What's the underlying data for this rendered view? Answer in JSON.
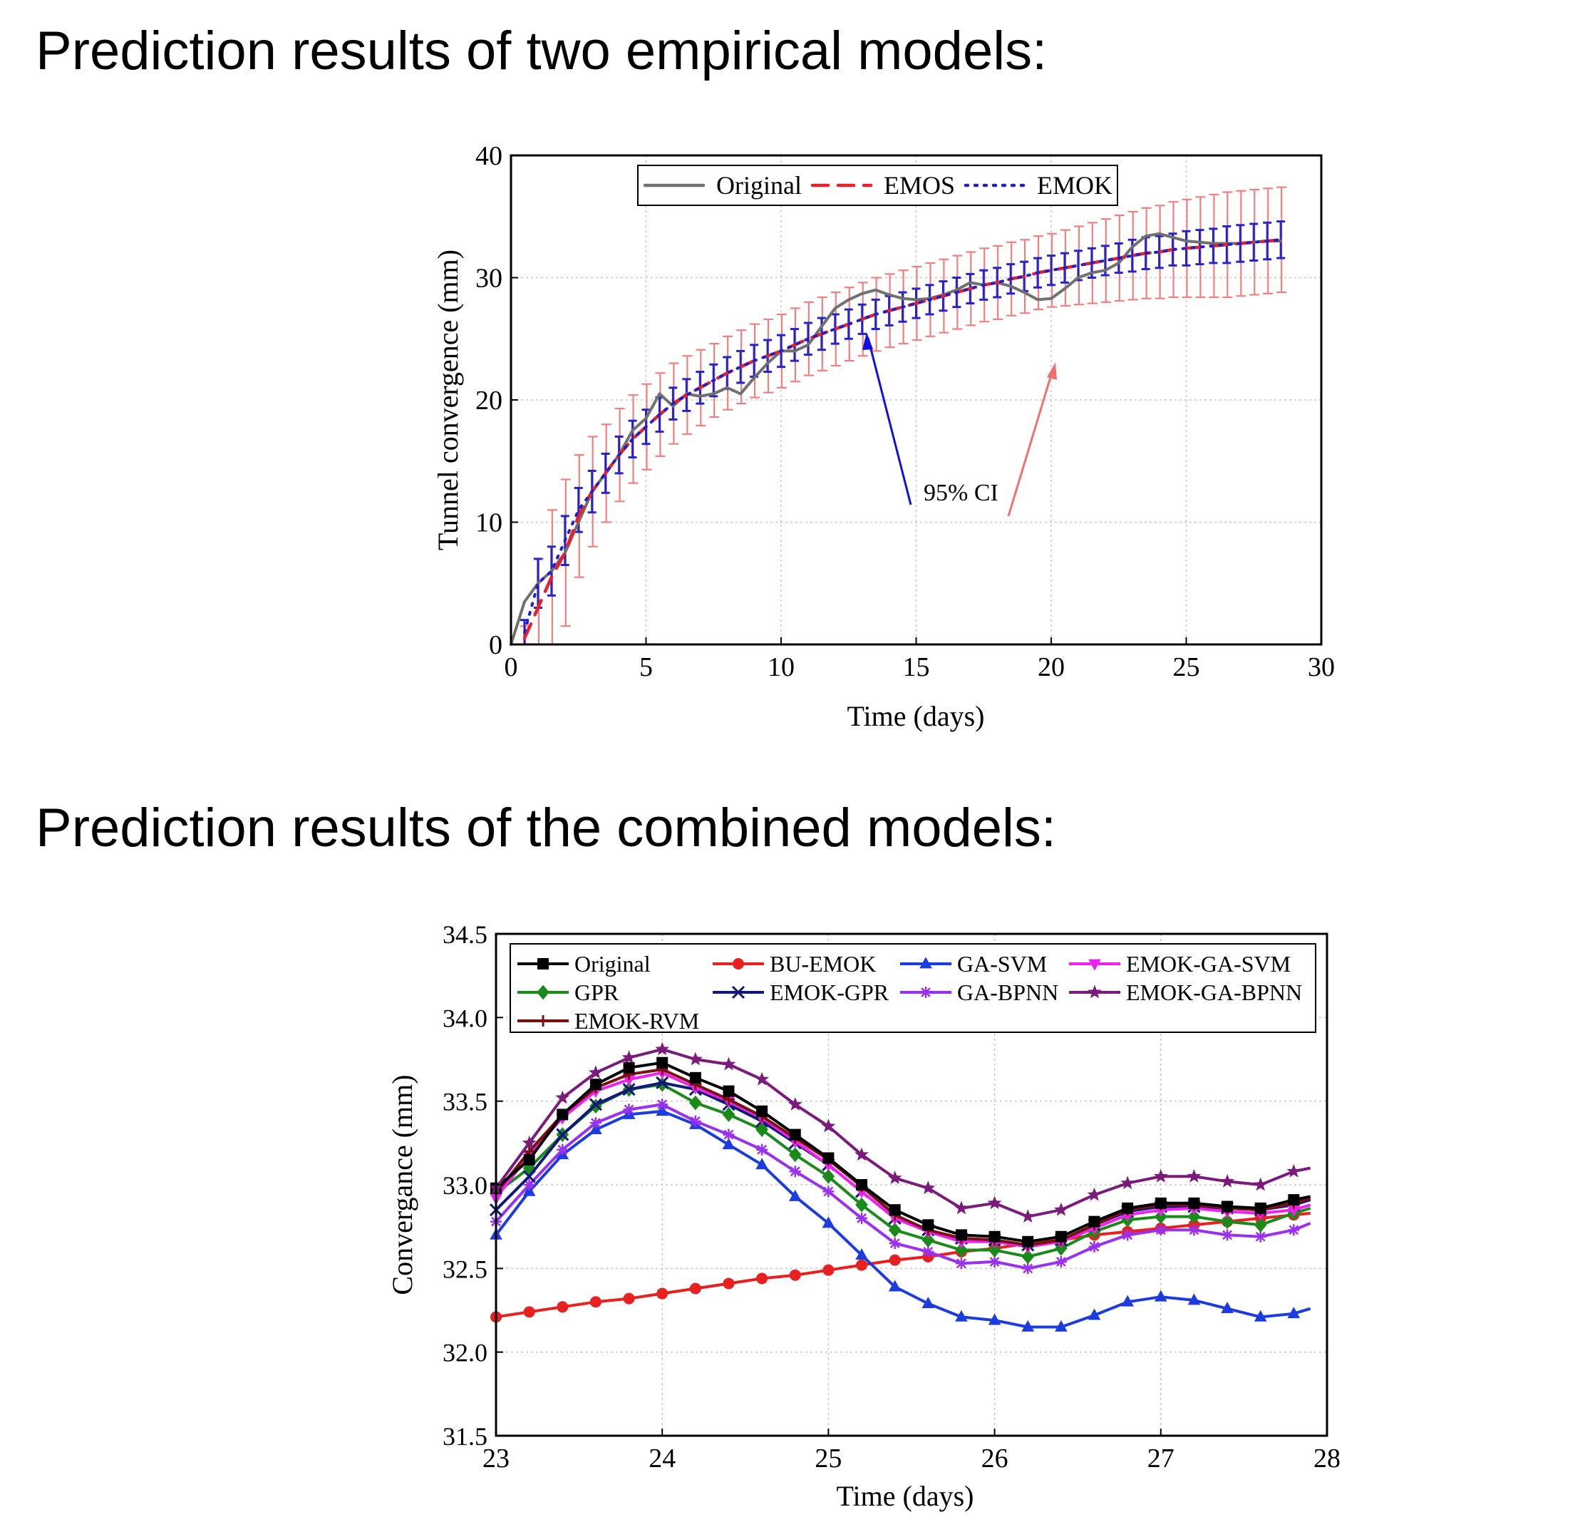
{
  "headings": {
    "top": "Prediction results of two empirical models:",
    "bottom": "Prediction results of the combined models:"
  },
  "chart_data": [
    {
      "type": "line",
      "xlabel": "Time (days)",
      "ylabel": "Tunnel convergence (mm)",
      "xlim": [
        0,
        30
      ],
      "ylim": [
        0,
        40
      ],
      "xticks": [
        0,
        5,
        10,
        15,
        20,
        25,
        30
      ],
      "yticks": [
        0,
        10,
        20,
        30,
        40
      ],
      "grid": true,
      "legend_position": "top-center",
      "annotation": "95% CI",
      "series": [
        {
          "name": "Original",
          "color": "#707070",
          "style": "solid",
          "x": [
            0,
            0.5,
            1,
            1.5,
            2,
            2.5,
            3,
            3.5,
            4,
            4.5,
            5,
            5.5,
            6,
            6.5,
            7,
            7.5,
            8,
            8.5,
            9,
            9.5,
            10,
            10.5,
            11,
            11.5,
            12,
            12.5,
            13,
            13.5,
            14,
            14.5,
            15,
            15.5,
            16,
            16.5,
            17,
            17.5,
            18,
            18.5,
            19,
            19.5,
            20,
            20.5,
            21,
            21.5,
            22,
            22.5,
            23,
            23.5,
            24,
            24.5,
            25,
            25.5,
            26,
            26.5,
            27,
            27.5,
            28,
            28.5
          ],
          "values": [
            0,
            3.5,
            5,
            6,
            7.5,
            10,
            12.5,
            14,
            15.5,
            17.5,
            18.5,
            20.5,
            19.5,
            20.5,
            20.3,
            20.5,
            21,
            20.5,
            21.8,
            23,
            24,
            24,
            24.5,
            26,
            27.5,
            28.2,
            28.7,
            29,
            28.6,
            28.3,
            28.2,
            28.3,
            28.6,
            29,
            29.6,
            29.4,
            29.6,
            29.3,
            28.8,
            28.2,
            28.3,
            29.1,
            30,
            30.4,
            30.6,
            31.2,
            32.5,
            33.4,
            33.6,
            33.3,
            33,
            32.9,
            32.8,
            32.8,
            32.8,
            32.9,
            33,
            33
          ]
        },
        {
          "name": "EMOS",
          "color": "#e8202a",
          "style": "dashed",
          "x": [
            0.5,
            1,
            1.5,
            2,
            2.5,
            3,
            3.5,
            4,
            4.5,
            5,
            5.5,
            6,
            6.5,
            7,
            7.5,
            8,
            8.5,
            9,
            9.5,
            10,
            10.5,
            11,
            11.5,
            12,
            12.5,
            13,
            13.5,
            14,
            14.5,
            15,
            15.5,
            16,
            16.5,
            17,
            17.5,
            18,
            18.5,
            19,
            19.5,
            20,
            20.5,
            21,
            21.5,
            22,
            22.5,
            23,
            23.5,
            24,
            24.5,
            25,
            25.5,
            26,
            26.5,
            27,
            27.5,
            28,
            28.5
          ],
          "values": [
            0.5,
            3,
            5.5,
            7.5,
            10.5,
            12.5,
            14,
            15.5,
            16.8,
            17.8,
            18.8,
            19.7,
            20.4,
            21,
            21.6,
            22.2,
            22.7,
            23.2,
            23.6,
            24,
            24.5,
            25,
            25.4,
            25.8,
            26.2,
            26.6,
            27,
            27.3,
            27.6,
            27.9,
            28.2,
            28.5,
            28.8,
            29.1,
            29.4,
            29.6,
            29.9,
            30.1,
            30.4,
            30.6,
            30.8,
            31,
            31.2,
            31.4,
            31.6,
            31.8,
            32,
            32.1,
            32.3,
            32.4,
            32.5,
            32.6,
            32.7,
            32.8,
            32.9,
            33,
            33.1
          ],
          "ci_halfwidth": [
            1,
            4,
            5.5,
            6,
            5,
            4.5,
            4,
            3.8,
            3.6,
            3.5,
            3.4,
            3.3,
            3.2,
            3.1,
            3,
            3,
            3,
            3,
            3,
            3,
            3,
            3,
            3,
            3,
            3,
            3,
            3,
            3,
            3,
            3,
            3,
            3,
            3,
            3,
            3,
            3,
            3,
            3,
            3,
            3,
            3.1,
            3.2,
            3.3,
            3.4,
            3.5,
            3.6,
            3.7,
            3.8,
            3.9,
            4,
            4.1,
            4.2,
            4.3,
            4.3,
            4.3,
            4.3,
            4.3
          ]
        },
        {
          "name": "EMOK",
          "color": "#2020c8",
          "style": "dotted",
          "x": [
            0.5,
            1,
            1.5,
            2,
            2.5,
            3,
            3.5,
            4,
            4.5,
            5,
            5.5,
            6,
            6.5,
            7,
            7.5,
            8,
            8.5,
            9,
            9.5,
            10,
            10.5,
            11,
            11.5,
            12,
            12.5,
            13,
            13.5,
            14,
            14.5,
            15,
            15.5,
            16,
            16.5,
            17,
            17.5,
            18,
            18.5,
            19,
            19.5,
            20,
            20.5,
            21,
            21.5,
            22,
            22.5,
            23,
            23.5,
            24,
            24.5,
            25,
            25.5,
            26,
            26.5,
            27,
            27.5,
            28,
            28.5
          ],
          "values": [
            1,
            5,
            6,
            8.5,
            11,
            12.5,
            14,
            15.5,
            16.8,
            17.8,
            18.8,
            19.7,
            20.4,
            21,
            21.6,
            22.2,
            22.7,
            23.2,
            23.6,
            24,
            24.5,
            25,
            25.4,
            25.8,
            26.2,
            26.6,
            27,
            27.3,
            27.6,
            27.9,
            28.2,
            28.5,
            28.8,
            29.1,
            29.4,
            29.6,
            29.9,
            30.1,
            30.4,
            30.6,
            30.8,
            31,
            31.2,
            31.4,
            31.6,
            31.8,
            32,
            32.1,
            32.3,
            32.4,
            32.5,
            32.6,
            32.7,
            32.8,
            32.9,
            33,
            33.1
          ],
          "ci_halfwidth": [
            1,
            2,
            2,
            2,
            1.8,
            1.7,
            1.6,
            1.5,
            1.5,
            1.4,
            1.4,
            1.3,
            1.3,
            1.3,
            1.3,
            1.3,
            1.3,
            1.3,
            1.3,
            1.3,
            1.3,
            1.3,
            1.3,
            1.2,
            1.2,
            1.2,
            1.2,
            1.2,
            1.2,
            1.2,
            1.2,
            1.2,
            1.2,
            1.2,
            1.2,
            1.2,
            1.2,
            1.2,
            1.2,
            1.2,
            1.2,
            1.2,
            1.2,
            1.2,
            1.2,
            1.3,
            1.3,
            1.3,
            1.3,
            1.4,
            1.4,
            1.4,
            1.5,
            1.5,
            1.5,
            1.5,
            1.5
          ]
        }
      ]
    },
    {
      "type": "line",
      "xlabel": "Time (days)",
      "ylabel": "Convergance (mm)",
      "xlim": [
        23,
        28
      ],
      "ylim": [
        31.5,
        34.5
      ],
      "xticks": [
        23,
        24,
        25,
        26,
        27,
        28
      ],
      "yticks": [
        31.5,
        32.0,
        32.5,
        33.0,
        33.5,
        34.0,
        34.5
      ],
      "ytick_labels": [
        "31.5",
        "32.0",
        "32.5",
        "33.0",
        "33.5",
        "34.0",
        "34.5"
      ],
      "grid": true,
      "legend_position": "top",
      "x": [
        23.0,
        23.2,
        23.4,
        23.6,
        23.8,
        24.0,
        24.2,
        24.4,
        24.6,
        24.8,
        25.0,
        25.2,
        25.4,
        25.6,
        25.8,
        26.0,
        26.2,
        26.4,
        26.6,
        26.8,
        27.0,
        27.2,
        27.4,
        27.6,
        27.8,
        27.9
      ],
      "series": [
        {
          "name": "Original",
          "color": "#000000",
          "marker": "square",
          "values": [
            32.98,
            33.15,
            33.42,
            33.6,
            33.7,
            33.73,
            33.64,
            33.56,
            33.44,
            33.3,
            33.16,
            33.0,
            32.85,
            32.76,
            32.7,
            32.69,
            32.66,
            32.69,
            32.78,
            32.86,
            32.89,
            32.89,
            32.87,
            32.86,
            32.91,
            32.93
          ]
        },
        {
          "name": "BU-EMOK",
          "color": "#e82020",
          "marker": "circle",
          "values": [
            32.21,
            32.24,
            32.27,
            32.3,
            32.32,
            32.35,
            32.38,
            32.41,
            32.44,
            32.46,
            32.49,
            32.52,
            32.55,
            32.57,
            32.6,
            32.62,
            32.65,
            32.67,
            32.7,
            32.72,
            32.74,
            32.76,
            32.78,
            32.8,
            32.82,
            32.83
          ]
        },
        {
          "name": "GA-SVM",
          "color": "#1c3ce0",
          "marker": "triangle",
          "values": [
            32.7,
            32.96,
            33.18,
            33.33,
            33.42,
            33.44,
            33.36,
            33.24,
            33.12,
            32.93,
            32.77,
            32.58,
            32.39,
            32.29,
            32.21,
            32.19,
            32.15,
            32.15,
            32.22,
            32.3,
            32.33,
            32.31,
            32.26,
            32.21,
            32.23,
            32.26
          ]
        },
        {
          "name": "EMOK-GA-SVM",
          "color": "#f020f0",
          "marker": "triangle-down",
          "values": [
            32.92,
            33.18,
            33.4,
            33.56,
            33.63,
            33.67,
            33.58,
            33.5,
            33.4,
            33.26,
            33.12,
            32.96,
            32.8,
            32.72,
            32.66,
            32.66,
            32.63,
            32.66,
            32.74,
            32.82,
            32.85,
            32.86,
            32.84,
            32.83,
            32.85,
            32.88
          ]
        },
        {
          "name": "GPR",
          "color": "#1a8a1a",
          "marker": "diamond",
          "values": [
            32.95,
            33.1,
            33.3,
            33.47,
            33.57,
            33.6,
            33.49,
            33.42,
            33.33,
            33.18,
            33.05,
            32.88,
            32.73,
            32.67,
            32.61,
            32.61,
            32.57,
            32.62,
            32.72,
            32.79,
            32.81,
            32.81,
            32.78,
            32.76,
            32.83,
            32.86
          ]
        },
        {
          "name": "EMOK-GPR",
          "color": "#10187a",
          "marker": "cross",
          "values": [
            32.85,
            33.05,
            33.3,
            33.48,
            33.57,
            33.61,
            33.57,
            33.48,
            33.38,
            33.25,
            33.12,
            32.96,
            32.8,
            32.73,
            32.68,
            32.67,
            32.64,
            32.67,
            32.76,
            32.84,
            32.87,
            32.87,
            32.86,
            32.85,
            32.88,
            32.91
          ]
        },
        {
          "name": "GA-BPNN",
          "color": "#9a30f0",
          "marker": "asterisk",
          "values": [
            32.78,
            33.0,
            33.21,
            33.37,
            33.45,
            33.48,
            33.38,
            33.3,
            33.21,
            33.08,
            32.96,
            32.8,
            32.65,
            32.6,
            32.53,
            32.54,
            32.5,
            32.54,
            32.63,
            32.7,
            32.73,
            32.73,
            32.7,
            32.69,
            32.73,
            32.77
          ]
        },
        {
          "name": "EMOK-GA-BPNN",
          "color": "#7a1a7a",
          "marker": "star",
          "values": [
            32.98,
            33.25,
            33.52,
            33.67,
            33.76,
            33.81,
            33.75,
            33.72,
            33.63,
            33.48,
            33.35,
            33.18,
            33.04,
            32.98,
            32.86,
            32.89,
            32.81,
            32.85,
            32.94,
            33.01,
            33.05,
            33.05,
            33.02,
            33.0,
            33.08,
            33.1
          ]
        },
        {
          "name": "EMOK-RVM",
          "color": "#7a1010",
          "marker": "plus",
          "values": [
            32.95,
            33.2,
            33.42,
            33.58,
            33.66,
            33.69,
            33.6,
            33.51,
            33.41,
            33.28,
            33.15,
            32.99,
            32.82,
            32.73,
            32.68,
            32.67,
            32.64,
            32.67,
            32.76,
            32.85,
            32.88,
            32.88,
            32.86,
            32.85,
            32.89,
            32.92
          ]
        }
      ]
    }
  ]
}
